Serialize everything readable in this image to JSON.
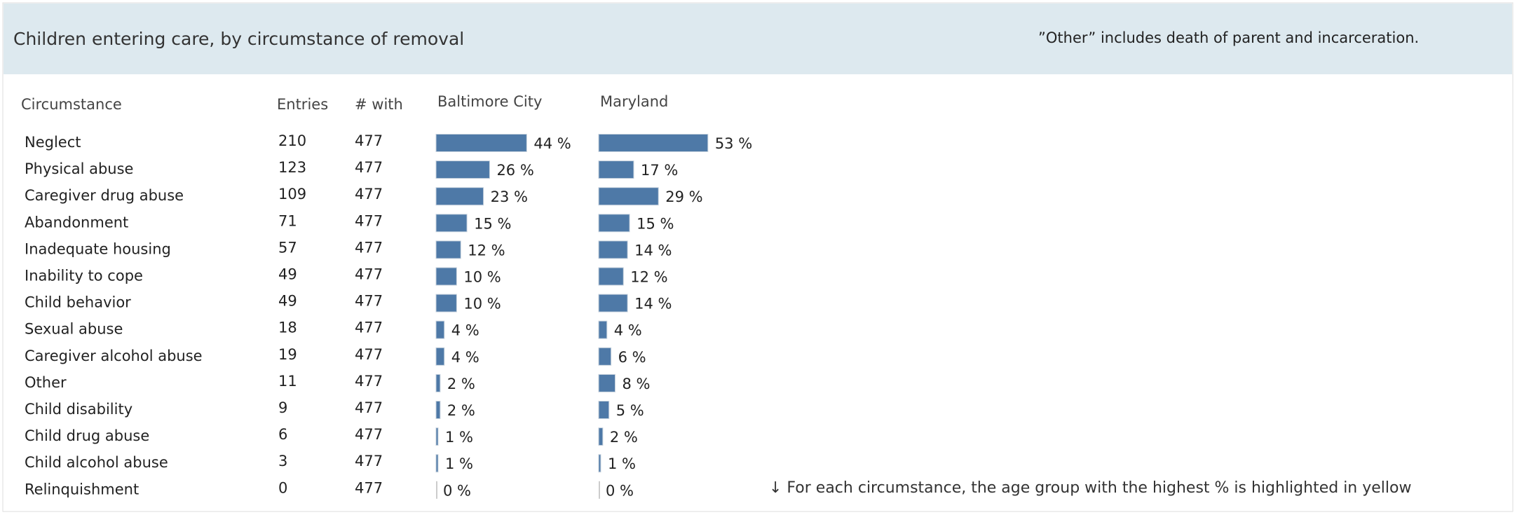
{
  "header": {
    "title": "Children entering care, by circumstance of removal",
    "note": "”Other” includes death of parent and incarceration."
  },
  "table": {
    "columns": [
      "Circumstance",
      "Entries",
      "# with"
    ],
    "categories": [
      "Neglect",
      "Physical abuse",
      "Caregiver drug abuse",
      "Abandonment",
      "Inadequate housing",
      "Inability to cope",
      "Child behavior",
      "Sexual abuse",
      "Caregiver alcohol abuse",
      "Other",
      "Child disability",
      "Child drug abuse",
      "Child alcohol abuse",
      "Relinquishment"
    ],
    "entries": [
      210,
      123,
      109,
      71,
      57,
      49,
      49,
      18,
      19,
      11,
      9,
      6,
      3,
      0
    ],
    "with": [
      477,
      477,
      477,
      477,
      477,
      477,
      477,
      477,
      477,
      477,
      477,
      477,
      477,
      477
    ],
    "series": [
      {
        "name": "Baltimore City",
        "color": "#4e79a7",
        "values": [
          44,
          26,
          23,
          15,
          12,
          10,
          10,
          4,
          4,
          2,
          2,
          1,
          1,
          0
        ],
        "value_labels": [
          "44 %",
          "26 %",
          "23 %",
          "15 %",
          "12 %",
          "10 %",
          "10 %",
          "4 %",
          "4 %",
          "2 %",
          "2 %",
          "1 %",
          "1 %",
          "0 %"
        ]
      },
      {
        "name": "Maryland",
        "color": "#4e79a7",
        "values": [
          53,
          17,
          29,
          15,
          14,
          12,
          14,
          4,
          6,
          8,
          5,
          2,
          1,
          0
        ],
        "value_labels": [
          "53 %",
          "17 %",
          "29 %",
          "15 %",
          "14 %",
          "12 %",
          "14 %",
          "4 %",
          "6 %",
          "8 %",
          "5 %",
          "2 %",
          "1 %",
          "0 %"
        ]
      }
    ]
  },
  "footnote": "↓ For each circumstance, the age group with the highest % is highlighted in yellow"
}
